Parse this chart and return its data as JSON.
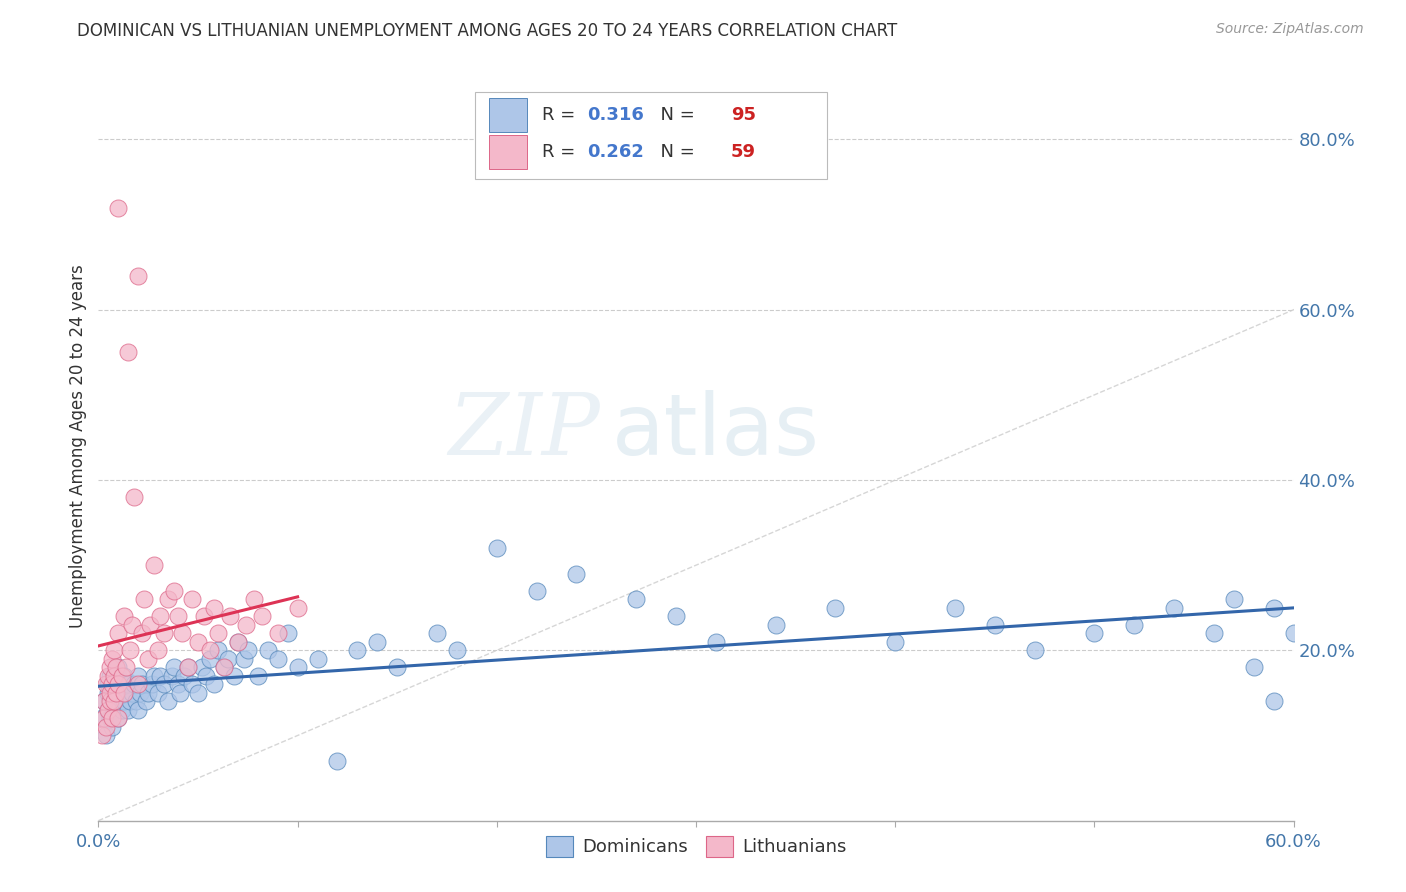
{
  "title": "DOMINICAN VS LITHUANIAN UNEMPLOYMENT AMONG AGES 20 TO 24 YEARS CORRELATION CHART",
  "source": "Source: ZipAtlas.com",
  "ylabel": "Unemployment Among Ages 20 to 24 years",
  "ylabel_right_ticks": [
    "80.0%",
    "60.0%",
    "40.0%",
    "20.0%"
  ],
  "ylabel_right_vals": [
    0.8,
    0.6,
    0.4,
    0.2
  ],
  "xlim": [
    0.0,
    0.6
  ],
  "ylim": [
    0.0,
    0.88
  ],
  "dominicans_color": "#aec6e8",
  "lithuanians_color": "#f4b8ca",
  "dominicans_edge": "#5588bb",
  "lithuanians_edge": "#dd6688",
  "trend_dominicans_color": "#3366aa",
  "trend_lithuanians_color": "#dd3355",
  "diagonal_color": "#cccccc",
  "R_dominicans": 0.316,
  "N_dominicans": 95,
  "R_lithuanians": 0.262,
  "N_lithuanians": 59,
  "legend_label_dom": "Dominicans",
  "legend_label_lith": "Lithuanians",
  "watermark_zip": "ZIP",
  "watermark_atlas": "atlas",
  "dom_x": [
    0.002,
    0.003,
    0.004,
    0.005,
    0.005,
    0.005,
    0.006,
    0.006,
    0.007,
    0.007,
    0.008,
    0.008,
    0.008,
    0.009,
    0.009,
    0.01,
    0.01,
    0.01,
    0.01,
    0.01,
    0.012,
    0.012,
    0.013,
    0.013,
    0.014,
    0.015,
    0.015,
    0.016,
    0.017,
    0.018,
    0.019,
    0.02,
    0.02,
    0.021,
    0.022,
    0.024,
    0.025,
    0.027,
    0.028,
    0.03,
    0.031,
    0.033,
    0.035,
    0.037,
    0.038,
    0.04,
    0.041,
    0.043,
    0.045,
    0.047,
    0.05,
    0.052,
    0.054,
    0.056,
    0.058,
    0.06,
    0.063,
    0.065,
    0.068,
    0.07,
    0.073,
    0.075,
    0.08,
    0.085,
    0.09,
    0.095,
    0.1,
    0.11,
    0.12,
    0.13,
    0.14,
    0.15,
    0.17,
    0.18,
    0.2,
    0.22,
    0.24,
    0.27,
    0.29,
    0.31,
    0.34,
    0.37,
    0.4,
    0.43,
    0.45,
    0.47,
    0.5,
    0.52,
    0.54,
    0.56,
    0.57,
    0.58,
    0.59,
    0.59,
    0.6
  ],
  "dom_y": [
    0.12,
    0.14,
    0.1,
    0.13,
    0.15,
    0.16,
    0.12,
    0.17,
    0.11,
    0.15,
    0.13,
    0.15,
    0.17,
    0.14,
    0.16,
    0.12,
    0.14,
    0.15,
    0.17,
    0.18,
    0.13,
    0.16,
    0.14,
    0.17,
    0.15,
    0.13,
    0.16,
    0.14,
    0.15,
    0.16,
    0.14,
    0.13,
    0.17,
    0.15,
    0.16,
    0.14,
    0.15,
    0.16,
    0.17,
    0.15,
    0.17,
    0.16,
    0.14,
    0.17,
    0.18,
    0.16,
    0.15,
    0.17,
    0.18,
    0.16,
    0.15,
    0.18,
    0.17,
    0.19,
    0.16,
    0.2,
    0.18,
    0.19,
    0.17,
    0.21,
    0.19,
    0.2,
    0.17,
    0.2,
    0.19,
    0.22,
    0.18,
    0.19,
    0.07,
    0.2,
    0.21,
    0.18,
    0.22,
    0.2,
    0.32,
    0.27,
    0.29,
    0.26,
    0.24,
    0.21,
    0.23,
    0.25,
    0.21,
    0.25,
    0.23,
    0.2,
    0.22,
    0.23,
    0.25,
    0.22,
    0.26,
    0.18,
    0.25,
    0.14,
    0.22
  ],
  "lith_x": [
    0.002,
    0.003,
    0.003,
    0.004,
    0.004,
    0.005,
    0.005,
    0.006,
    0.006,
    0.006,
    0.007,
    0.007,
    0.007,
    0.008,
    0.008,
    0.008,
    0.009,
    0.009,
    0.01,
    0.01,
    0.01,
    0.01,
    0.012,
    0.013,
    0.013,
    0.014,
    0.015,
    0.016,
    0.017,
    0.018,
    0.02,
    0.02,
    0.022,
    0.023,
    0.025,
    0.026,
    0.028,
    0.03,
    0.031,
    0.033,
    0.035,
    0.038,
    0.04,
    0.042,
    0.045,
    0.047,
    0.05,
    0.053,
    0.056,
    0.058,
    0.06,
    0.063,
    0.066,
    0.07,
    0.074,
    0.078,
    0.082,
    0.09,
    0.1
  ],
  "lith_y": [
    0.1,
    0.12,
    0.14,
    0.11,
    0.16,
    0.13,
    0.17,
    0.14,
    0.15,
    0.18,
    0.12,
    0.16,
    0.19,
    0.14,
    0.17,
    0.2,
    0.15,
    0.18,
    0.12,
    0.16,
    0.22,
    0.72,
    0.17,
    0.15,
    0.24,
    0.18,
    0.55,
    0.2,
    0.23,
    0.38,
    0.16,
    0.64,
    0.22,
    0.26,
    0.19,
    0.23,
    0.3,
    0.2,
    0.24,
    0.22,
    0.26,
    0.27,
    0.24,
    0.22,
    0.18,
    0.26,
    0.21,
    0.24,
    0.2,
    0.25,
    0.22,
    0.18,
    0.24,
    0.21,
    0.23,
    0.26,
    0.24,
    0.22,
    0.25
  ]
}
